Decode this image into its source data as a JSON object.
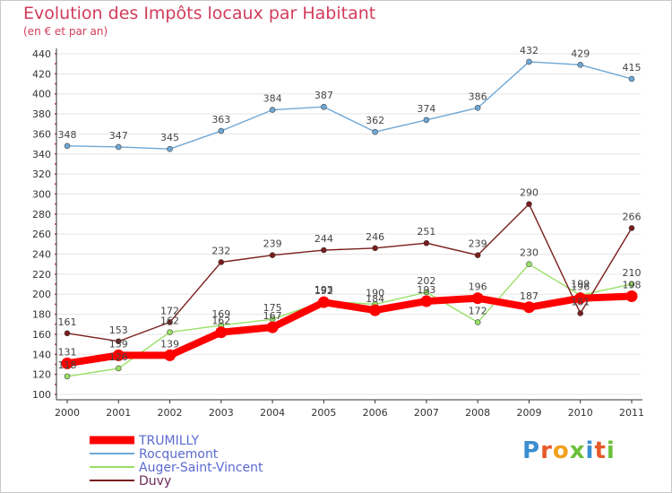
{
  "title": "Evolution des Impôts locaux par Habitant",
  "subtitle": "(en € et par an)",
  "logo": {
    "text": "Proxiti",
    "letters": [
      "P",
      "r",
      "o",
      "x",
      "i",
      "t",
      "i"
    ]
  },
  "colors": {
    "title": "#d23c5a",
    "axis": "#333333",
    "grid": "#e6e6e6"
  },
  "chart_data": {
    "type": "line",
    "title": "Evolution des Impôts locaux par Habitant",
    "subtitle": "(en € et par an)",
    "xlabel": "",
    "ylabel": "",
    "x": [
      "2000",
      "2001",
      "2002",
      "2003",
      "2004",
      "2005",
      "2006",
      "2007",
      "2008",
      "2009",
      "2010",
      "2011"
    ],
    "ylim": [
      100,
      440
    ],
    "yticks": [
      100,
      120,
      140,
      160,
      180,
      200,
      220,
      240,
      260,
      280,
      300,
      320,
      340,
      360,
      380,
      400,
      420,
      440
    ],
    "grid": true,
    "legend_position": "bottom-left",
    "series": [
      {
        "name": "TRUMILLY",
        "color": "#ff0000",
        "values": [
          131,
          139,
          139,
          162,
          167,
          192,
          184,
          193,
          196,
          187,
          196,
          198
        ]
      },
      {
        "name": "Rocquemont",
        "color": "#6fa8d6",
        "values": [
          348,
          347,
          345,
          363,
          384,
          387,
          362,
          374,
          386,
          432,
          429,
          415
        ]
      },
      {
        "name": "Auger-Saint-Vincent",
        "color": "#99e066",
        "values": [
          118,
          126,
          162,
          169,
          175,
          193,
          190,
          202,
          172,
          230,
          199,
          210
        ]
      },
      {
        "name": "Duvy",
        "color": "#7a1c1c",
        "values": [
          161,
          153,
          172,
          232,
          239,
          244,
          246,
          251,
          239,
          290,
          181,
          266
        ]
      }
    ]
  }
}
